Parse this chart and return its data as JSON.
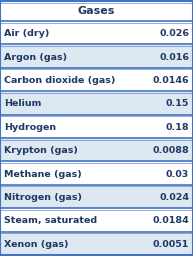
{
  "title": "Gases",
  "rows": [
    [
      "Air (dry)",
      "0.026"
    ],
    [
      "Argon (gas)",
      "0.016"
    ],
    [
      "Carbon dioxide (gas)",
      "0.0146"
    ],
    [
      "Helium",
      "0.15"
    ],
    [
      "Hydrogen",
      "0.18"
    ],
    [
      "Krypton (gas)",
      "0.0088"
    ],
    [
      "Methane (gas)",
      "0.03"
    ],
    [
      "Nitrogen (gas)",
      "0.024"
    ],
    [
      "Steam, saturated",
      "0.0184"
    ],
    [
      "Xenon (gas)",
      "0.0051"
    ]
  ],
  "bg_color": "#ffffff",
  "title_bg": "#ffffff",
  "row_bg_odd": "#ffffff",
  "row_bg_even": "#dde8f0",
  "separator_color": "#4472c4",
  "text_color": "#1f3864",
  "font_size": 6.8,
  "title_font_size": 8.0
}
